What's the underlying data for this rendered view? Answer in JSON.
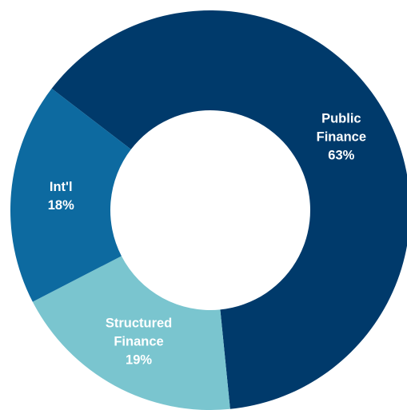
{
  "chart_data": {
    "type": "pie",
    "style": "donut",
    "slices": [
      {
        "label": "Public Finance",
        "display_label": "Public\nFinance",
        "value": 63,
        "value_label": "63%",
        "color": "#003a6b",
        "text_color": "#ffffff"
      },
      {
        "label": "Structured Finance",
        "display_label": "Structured\nFinance",
        "value": 19,
        "value_label": "19%",
        "color": "#7ac5cf",
        "text_color": "#ffffff"
      },
      {
        "label": "Int'l",
        "display_label": "Int'l",
        "value": 18,
        "value_label": "18%",
        "color": "#0d6aa0",
        "text_color": "#ffffff"
      }
    ],
    "legend": "none",
    "title": ""
  }
}
